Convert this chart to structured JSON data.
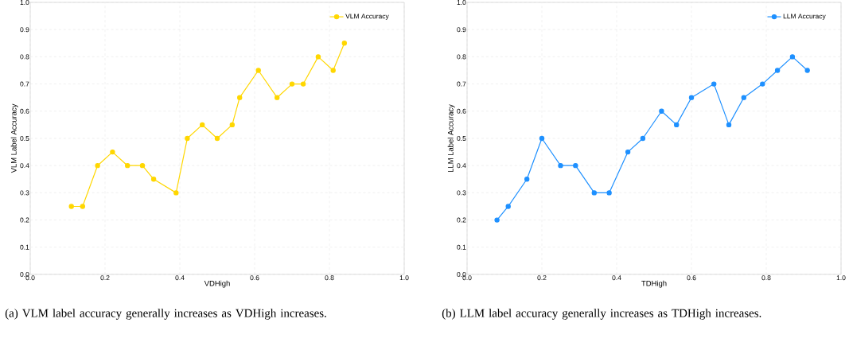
{
  "chart_data": [
    {
      "type": "line",
      "xlabel": "VDHigh",
      "ylabel": "VLM Label Accuracy",
      "legend": "top right",
      "marker": "circle",
      "line_style": "solid",
      "grid": true,
      "x": [
        0.11,
        0.14,
        0.18,
        0.22,
        0.26,
        0.3,
        0.33,
        0.39,
        0.42,
        0.46,
        0.5,
        0.54,
        0.56,
        0.61,
        0.66,
        0.7,
        0.73,
        0.77,
        0.81,
        0.84
      ],
      "series": [
        {
          "name": "VLM Accuracy",
          "color": "#ffd700",
          "values": [
            0.25,
            0.25,
            0.4,
            0.45,
            0.4,
            0.4,
            0.35,
            0.3,
            0.5,
            0.55,
            0.5,
            0.55,
            0.65,
            0.75,
            0.65,
            0.7,
            0.7,
            0.8,
            0.75,
            0.85
          ]
        }
      ],
      "xlim": [
        0,
        1
      ],
      "ylim": [
        0,
        1
      ],
      "xticks": [
        {
          "value": 0,
          "label": "0.0"
        },
        {
          "value": 0.2,
          "label": "0.2"
        },
        {
          "value": 0.4,
          "label": "0.4"
        },
        {
          "value": 0.6,
          "label": "0.6"
        },
        {
          "value": 0.8,
          "label": "0.8"
        },
        {
          "value": 1,
          "label": "1.0"
        }
      ],
      "yticks": [
        {
          "value": 0,
          "label": "0.0"
        },
        {
          "value": 0.1,
          "label": "0.1"
        },
        {
          "value": 0.2,
          "label": "0.2"
        },
        {
          "value": 0.3,
          "label": "0.3"
        },
        {
          "value": 0.4,
          "label": "0.4"
        },
        {
          "value": 0.5,
          "label": "0.5"
        },
        {
          "value": 0.6,
          "label": "0.6"
        },
        {
          "value": 0.7,
          "label": "0.7"
        },
        {
          "value": 0.8,
          "label": "0.8"
        },
        {
          "value": 0.9,
          "label": "0.9"
        },
        {
          "value": 1,
          "label": "1.0"
        }
      ],
      "annotations": [
        "(a) VLM label accuracy generally increases as VDHigh increases."
      ]
    },
    {
      "type": "line",
      "xlabel": "TDHigh",
      "ylabel": "LLM Label Accuracy",
      "legend": "top right",
      "marker": "circle",
      "line_style": "solid",
      "grid": true,
      "x": [
        0.08,
        0.11,
        0.16,
        0.2,
        0.25,
        0.29,
        0.34,
        0.38,
        0.43,
        0.47,
        0.52,
        0.56,
        0.6,
        0.66,
        0.7,
        0.74,
        0.79,
        0.83,
        0.87,
        0.91
      ],
      "series": [
        {
          "name": "LLM Accuracy",
          "color": "#1e90ff",
          "values": [
            0.2,
            0.25,
            0.35,
            0.5,
            0.4,
            0.4,
            0.3,
            0.3,
            0.45,
            0.5,
            0.6,
            0.55,
            0.65,
            0.7,
            0.55,
            0.65,
            0.7,
            0.75,
            0.8,
            0.75
          ]
        }
      ],
      "xlim": [
        0,
        1
      ],
      "ylim": [
        0,
        1
      ],
      "xticks": [
        {
          "value": 0,
          "label": "0.0"
        },
        {
          "value": 0.2,
          "label": "0.2"
        },
        {
          "value": 0.4,
          "label": "0.4"
        },
        {
          "value": 0.6,
          "label": "0.6"
        },
        {
          "value": 0.8,
          "label": "0.8"
        },
        {
          "value": 1,
          "label": "1.0"
        }
      ],
      "yticks": [
        {
          "value": 0,
          "label": "0.0"
        },
        {
          "value": 0.1,
          "label": "0.1"
        },
        {
          "value": 0.2,
          "label": "0.2"
        },
        {
          "value": 0.3,
          "label": "0.3"
        },
        {
          "value": 0.4,
          "label": "0.4"
        },
        {
          "value": 0.5,
          "label": "0.5"
        },
        {
          "value": 0.6,
          "label": "0.6"
        },
        {
          "value": 0.7,
          "label": "0.7"
        },
        {
          "value": 0.8,
          "label": "0.8"
        },
        {
          "value": 0.9,
          "label": "0.9"
        },
        {
          "value": 1,
          "label": "1.0"
        }
      ],
      "annotations": [
        "(b) LLM label accuracy generally increases as TDHigh increases."
      ]
    }
  ]
}
